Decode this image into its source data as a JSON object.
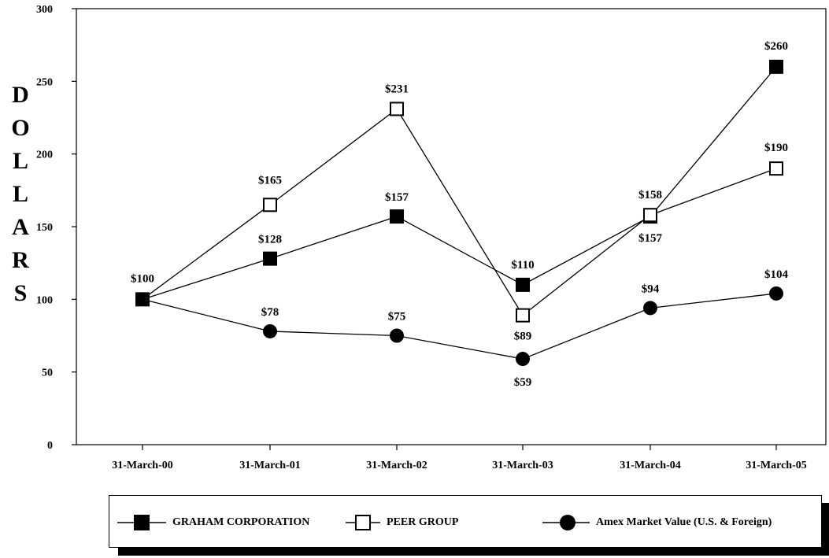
{
  "chart_data": {
    "type": "line",
    "title": "",
    "xlabel": "",
    "ylabel": "DOLLARS",
    "ylim": [
      0,
      300
    ],
    "yticks": [
      "0",
      "50",
      "100",
      "150",
      "200",
      "250",
      "300"
    ],
    "categories": [
      "31-March-00",
      "31-March-01",
      "31-March-02",
      "31-March-03",
      "31-March-04",
      "31-March-05"
    ],
    "series": [
      {
        "name": "GRAHAM CORPORATION",
        "marker": "filled-square",
        "values": [
          100,
          128,
          157,
          110,
          157,
          260
        ],
        "labels": [
          "$100",
          "$128",
          "$157",
          "$110",
          "$157",
          "$260"
        ]
      },
      {
        "name": "PEER GROUP",
        "marker": "open-square",
        "values": [
          100,
          165,
          231,
          89,
          158,
          190
        ],
        "labels": [
          "",
          "$165",
          "$231",
          "$89",
          "$158",
          "$190"
        ]
      },
      {
        "name": "Amex Market Value (U.S. & Foreign)",
        "marker": "filled-circle",
        "values": [
          100,
          78,
          75,
          59,
          94,
          104
        ],
        "labels": [
          "",
          "$78",
          "$75",
          "$59",
          "$94",
          "$104"
        ]
      }
    ],
    "grid": false,
    "legend": "bottom"
  }
}
